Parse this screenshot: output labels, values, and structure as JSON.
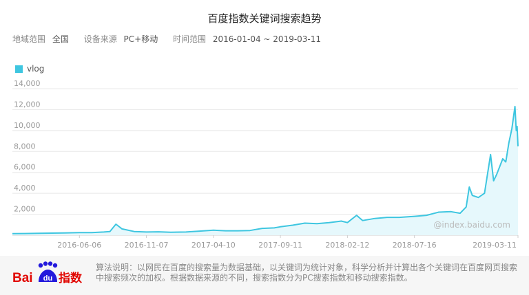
{
  "title": "百度指数关键词搜索趋势",
  "meta": {
    "region_label": "地域范围",
    "region_value": "全国",
    "source_label": "设备来源",
    "source_value": "PC+移动",
    "time_label": "时间范围",
    "time_value": "2016-01-04 ~ 2019-03-11"
  },
  "watermark": "@index.baidu.com",
  "footer": {
    "note": "算法说明：以网民在百度的搜索量为数据基础，以关键词为统计对象，科学分析并计算出各个关键词在百度网页搜索中搜索频次的加权。根据数据来源的不同，搜索指数分为PC搜索指数和移动搜索指数。",
    "logo_text": "Bai du 指数"
  },
  "colors": {
    "series": "#3ec6e0",
    "area": "#e6f8fc",
    "grid": "#e8e8e8",
    "axis_text": "#999999",
    "logo_red": "#e10601",
    "logo_blue": "#2319dc"
  },
  "chart_data": {
    "type": "area",
    "title": "",
    "xlabel": "",
    "ylabel": "",
    "ylim": [
      0,
      14000
    ],
    "y_ticks": [
      2000,
      4000,
      6000,
      8000,
      10000,
      12000,
      14000
    ],
    "y_tick_labels": [
      "2,000",
      "4,000",
      "6,000",
      "8,000",
      "10,000",
      "12,000",
      "14,000"
    ],
    "x_ticks": [
      "2016-06-06",
      "2016-11-07",
      "2017-04-10",
      "2017-09-11",
      "2018-02-12",
      "2018-07-16",
      "2019-03-11"
    ],
    "grid": true,
    "legend": "top-left",
    "series": [
      {
        "name": "vlog",
        "points": [
          [
            "2016-01-04",
            150
          ],
          [
            "2016-02-01",
            160
          ],
          [
            "2016-03-07",
            180
          ],
          [
            "2016-04-04",
            200
          ],
          [
            "2016-05-02",
            210
          ],
          [
            "2016-06-06",
            240
          ],
          [
            "2016-07-04",
            250
          ],
          [
            "2016-08-01",
            300
          ],
          [
            "2016-08-15",
            350
          ],
          [
            "2016-08-29",
            1050
          ],
          [
            "2016-09-12",
            600
          ],
          [
            "2016-10-10",
            350
          ],
          [
            "2016-11-07",
            300
          ],
          [
            "2016-12-05",
            320
          ],
          [
            "2017-01-02",
            280
          ],
          [
            "2017-02-06",
            300
          ],
          [
            "2017-03-06",
            380
          ],
          [
            "2017-04-10",
            480
          ],
          [
            "2017-05-08",
            420
          ],
          [
            "2017-06-05",
            420
          ],
          [
            "2017-07-03",
            450
          ],
          [
            "2017-07-31",
            650
          ],
          [
            "2017-08-28",
            700
          ],
          [
            "2017-09-11",
            800
          ],
          [
            "2017-10-09",
            950
          ],
          [
            "2017-11-06",
            1150
          ],
          [
            "2017-12-04",
            1100
          ],
          [
            "2018-01-01",
            1200
          ],
          [
            "2018-01-29",
            1350
          ],
          [
            "2018-02-12",
            1200
          ],
          [
            "2018-03-05",
            1900
          ],
          [
            "2018-03-19",
            1400
          ],
          [
            "2018-04-16",
            1600
          ],
          [
            "2018-05-14",
            1700
          ],
          [
            "2018-06-11",
            1700
          ],
          [
            "2018-07-16",
            1800
          ],
          [
            "2018-08-13",
            1900
          ],
          [
            "2018-09-10",
            2200
          ],
          [
            "2018-10-08",
            2250
          ],
          [
            "2018-10-29",
            2100
          ],
          [
            "2018-11-12",
            2700
          ],
          [
            "2018-11-19",
            4600
          ],
          [
            "2018-11-26",
            3800
          ],
          [
            "2018-12-10",
            3600
          ],
          [
            "2018-12-24",
            4000
          ],
          [
            "2019-01-07",
            7700
          ],
          [
            "2019-01-14",
            5200
          ],
          [
            "2019-01-21",
            5800
          ],
          [
            "2019-02-04",
            7300
          ],
          [
            "2019-02-11",
            7000
          ],
          [
            "2019-02-18",
            8800
          ],
          [
            "2019-02-25",
            10200
          ],
          [
            "2019-03-04",
            12300
          ],
          [
            "2019-03-07",
            10000
          ],
          [
            "2019-03-09",
            10400
          ],
          [
            "2019-03-11",
            8500
          ]
        ]
      }
    ]
  }
}
